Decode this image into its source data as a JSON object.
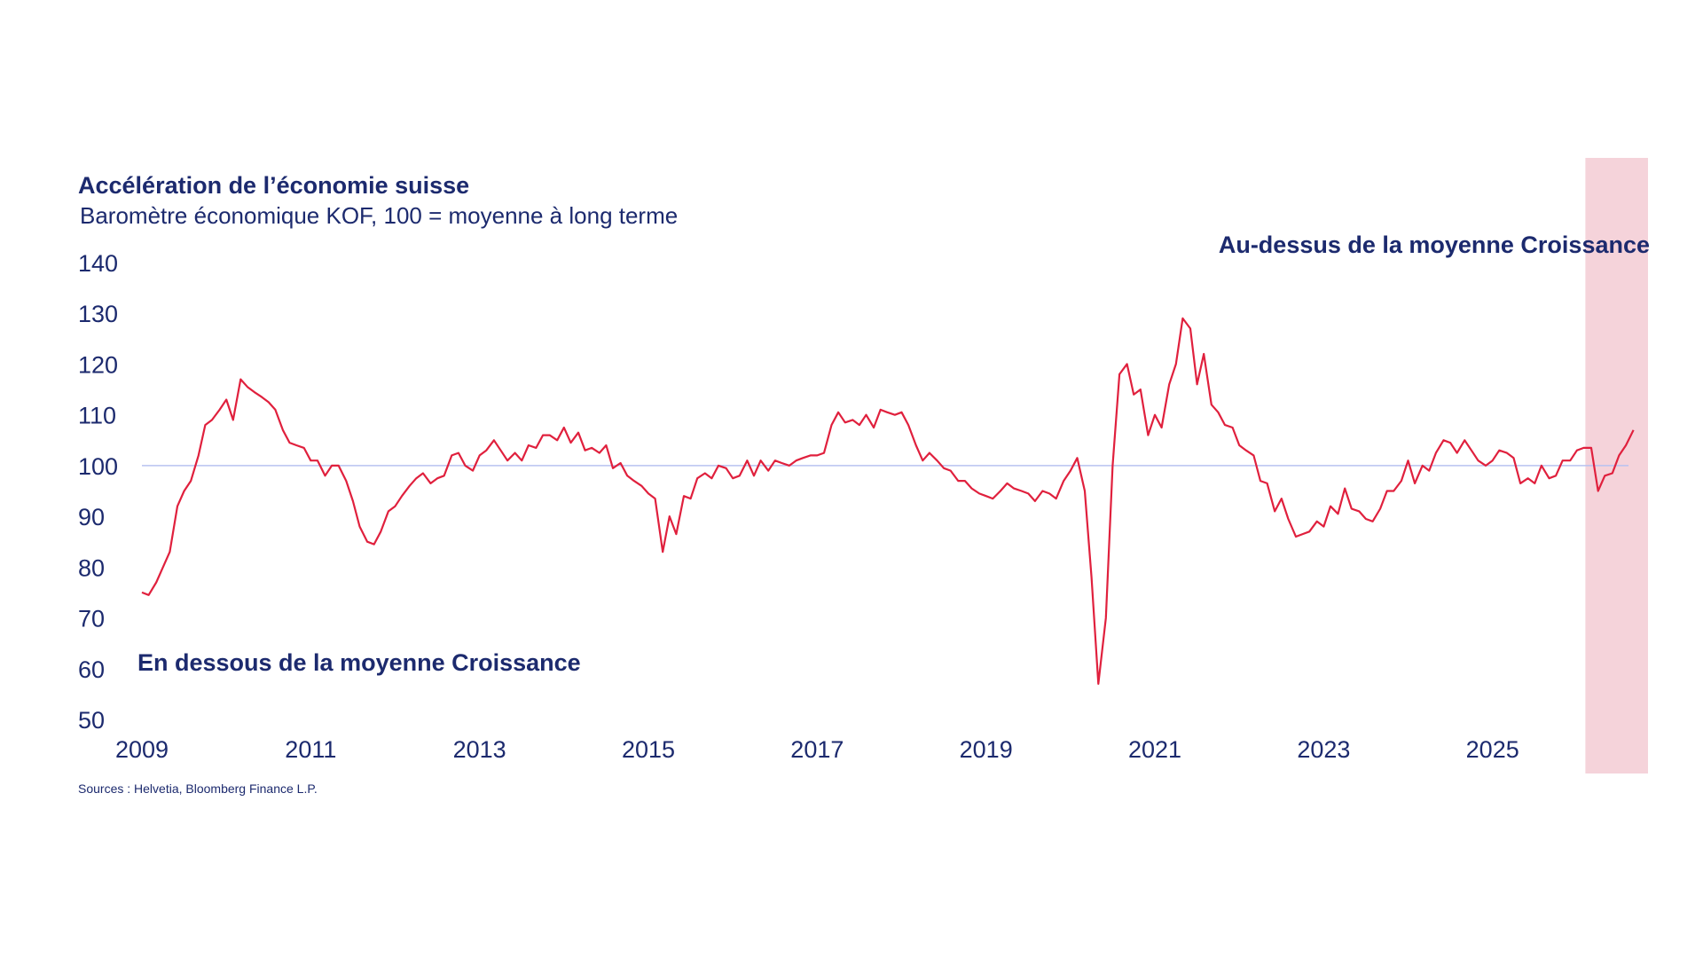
{
  "chart_data": {
    "type": "line",
    "title": "Accélération de l’économie suisse",
    "subtitle": "Baromètre économique KOF, 100 = moyenne à long terme",
    "ylim": [
      50,
      140
    ],
    "y_ticks": [
      "140",
      "130",
      "120",
      "110",
      "100",
      "90",
      "80",
      "70",
      "60",
      "50"
    ],
    "y_tick_values": [
      140,
      130,
      120,
      110,
      100,
      90,
      80,
      70,
      60,
      50
    ],
    "xlim": [
      2009,
      2026.8
    ],
    "x_ticks": [
      "2009",
      "2011",
      "2013",
      "2015",
      "2017",
      "2019",
      "2021",
      "2023",
      "2025"
    ],
    "x_tick_values": [
      2009,
      2011,
      2013,
      2015,
      2017,
      2019,
      2021,
      2023,
      2025
    ],
    "reference_line": 100,
    "highlight_from": 2026.1,
    "annotation_above": "Au-dessus de la moyenne Croissance",
    "annotation_below": "En dessous de la moyenne Croissance",
    "source": "Sources : Helvetia, Bloomberg Finance L.P.",
    "grid": false,
    "colors": {
      "series": "#e0203d",
      "reference": "#b8c2f0",
      "highlight": "#f5d3da",
      "text": "#1c2a6e"
    },
    "series": [
      {
        "x": [
          2009.0,
          2009.08,
          2009.17,
          2009.25,
          2009.33,
          2009.42,
          2009.5,
          2009.58,
          2009.67,
          2009.75,
          2009.83,
          2009.92,
          2010.0,
          2010.08,
          2010.17,
          2010.25,
          2010.33,
          2010.42,
          2010.5,
          2010.58,
          2010.67,
          2010.75,
          2010.83,
          2010.92,
          2011.0,
          2011.08,
          2011.17,
          2011.25,
          2011.33,
          2011.42,
          2011.5,
          2011.58,
          2011.67,
          2011.75,
          2011.83,
          2011.92,
          2012.0,
          2012.08,
          2012.17,
          2012.25,
          2012.33,
          2012.42,
          2012.5,
          2012.58,
          2012.67,
          2012.75,
          2012.83,
          2012.92,
          2013.0,
          2013.08,
          2013.17,
          2013.25,
          2013.33,
          2013.42,
          2013.5,
          2013.58,
          2013.67,
          2013.75,
          2013.83,
          2013.92,
          2014.0,
          2014.08,
          2014.17,
          2014.25,
          2014.33,
          2014.42,
          2014.5,
          2014.58,
          2014.67,
          2014.75,
          2014.83,
          2014.92,
          2015.0,
          2015.08,
          2015.17,
          2015.25,
          2015.33,
          2015.42,
          2015.5,
          2015.58,
          2015.67,
          2015.75,
          2015.83,
          2015.92,
          2016.0,
          2016.08,
          2016.17,
          2016.25,
          2016.33,
          2016.42,
          2016.5,
          2016.58,
          2016.67,
          2016.75,
          2016.83,
          2016.92,
          2017.0,
          2017.08,
          2017.17,
          2017.25,
          2017.33,
          2017.42,
          2017.5,
          2017.58,
          2017.67,
          2017.75,
          2017.83,
          2017.92,
          2018.0,
          2018.08,
          2018.17,
          2018.25,
          2018.33,
          2018.42,
          2018.5,
          2018.58,
          2018.67,
          2018.75,
          2018.83,
          2018.92,
          2019.0,
          2019.08,
          2019.17,
          2019.25,
          2019.33,
          2019.42,
          2019.5,
          2019.58,
          2019.67,
          2019.75,
          2019.83,
          2019.92,
          2020.0,
          2020.08,
          2020.17,
          2020.25,
          2020.33,
          2020.42,
          2020.5,
          2020.58,
          2020.67,
          2020.75,
          2020.83,
          2020.92,
          2021.0,
          2021.08,
          2021.17,
          2021.25,
          2021.33,
          2021.42,
          2021.5,
          2021.58,
          2021.67,
          2021.75,
          2021.83,
          2021.92,
          2022.0,
          2022.08,
          2022.17,
          2022.25,
          2022.33,
          2022.42,
          2022.5,
          2022.58,
          2022.67,
          2022.75,
          2022.83,
          2022.92,
          2023.0,
          2023.08,
          2023.17,
          2023.25,
          2023.33,
          2023.42,
          2023.5,
          2023.58,
          2023.67,
          2023.75,
          2023.83,
          2023.92,
          2024.0,
          2024.08,
          2024.17,
          2024.25,
          2024.33,
          2024.42,
          2024.5,
          2024.58,
          2024.67,
          2024.75,
          2024.83,
          2024.92,
          2025.0,
          2025.08,
          2025.17,
          2025.25,
          2025.33,
          2025.42,
          2025.5,
          2025.58,
          2025.67,
          2025.75,
          2025.83,
          2025.92,
          2026.0,
          2026.08,
          2026.17,
          2026.25,
          2026.33,
          2026.42,
          2026.5,
          2026.58,
          2026.67
        ],
        "values": [
          75,
          74.5,
          77,
          80,
          83,
          92,
          95,
          97,
          102,
          108,
          109,
          111,
          113,
          109,
          117,
          115.5,
          114.5,
          113.5,
          112.5,
          111,
          107,
          104.5,
          104,
          103.5,
          101,
          101,
          98,
          100,
          100,
          97,
          93,
          88,
          85,
          84.5,
          87,
          91,
          92,
          94,
          96,
          97.5,
          98.5,
          96.5,
          97.5,
          98,
          102,
          102.5,
          100,
          99,
          102,
          103,
          105,
          103,
          101,
          102.5,
          101,
          104,
          103.5,
          106,
          106,
          105,
          107.5,
          104.5,
          106.5,
          103,
          103.5,
          102.5,
          104,
          99.5,
          100.5,
          98,
          97,
          96,
          94.5,
          93.5,
          83,
          90,
          86.5,
          94,
          93.5,
          97.5,
          98.5,
          97.5,
          100,
          99.5,
          97.5,
          98,
          101,
          98,
          101,
          99,
          101,
          100.5,
          100,
          101,
          101.5,
          102,
          102,
          102.5,
          108,
          110.5,
          108.5,
          109,
          108,
          110,
          107.5,
          111,
          110.5,
          110,
          110.5,
          108,
          104,
          101,
          102.5,
          101,
          99.5,
          99,
          97,
          97,
          95.5,
          94.5,
          94,
          93.5,
          95,
          96.5,
          95.5,
          95,
          94.5,
          93,
          95,
          94.5,
          93.5,
          97,
          99,
          101.5,
          95,
          78,
          57,
          70,
          100,
          118,
          120,
          114,
          115,
          106,
          110,
          107.5,
          116,
          120,
          129,
          127,
          116,
          122,
          112,
          110.5,
          108,
          107.5,
          104,
          103,
          102,
          97,
          96.5,
          91,
          93.5,
          89.5,
          86,
          86.5,
          87,
          89,
          88,
          92,
          90.5,
          95.5,
          91.5,
          91,
          89.5,
          89,
          91.5,
          95,
          95,
          97,
          101,
          96.5,
          100,
          99,
          102.5,
          105,
          104.5,
          102.5,
          105,
          103,
          101,
          100,
          101,
          103,
          102.5,
          101.5,
          96.5,
          97.5,
          96.5,
          100,
          97.5,
          98,
          101,
          101,
          103,
          103.5,
          103.5,
          95,
          98,
          98.5,
          102,
          104,
          107
        ]
      }
    ]
  }
}
